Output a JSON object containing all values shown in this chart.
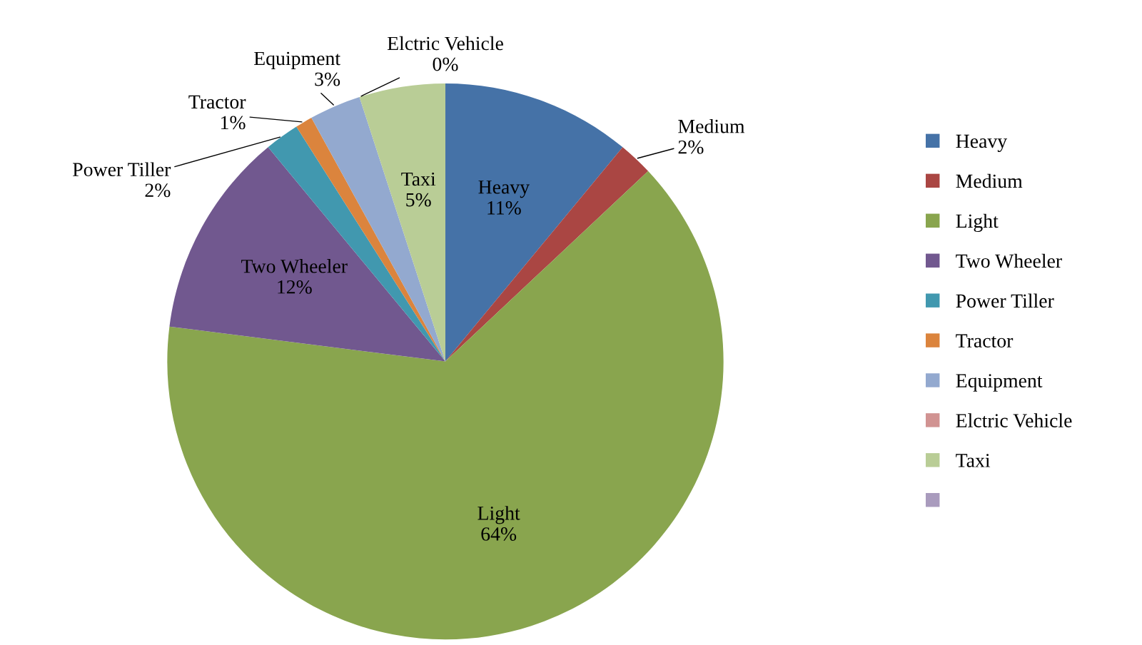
{
  "chart_data": {
    "type": "pie",
    "categories": [
      "Heavy",
      "Medium",
      "Light",
      "Two Wheeler",
      "Power Tiller",
      "Tractor",
      "Equipment",
      "Elctric Vehicle",
      "Taxi",
      null
    ],
    "values": [
      11,
      2,
      64,
      12,
      2,
      1,
      3,
      0,
      5,
      0
    ],
    "colors": [
      "#4572a7",
      "#aa4643",
      "#89a54e",
      "#71588f",
      "#4198af",
      "#db843d",
      "#93a9cf",
      "#d19392",
      "#b9cd96",
      "#a99bbd"
    ],
    "value_labels": [
      "11%",
      "2%",
      "64%",
      "12%",
      "2%",
      "1%",
      "3%",
      "0%",
      "5%",
      null
    ],
    "legend": "right"
  }
}
